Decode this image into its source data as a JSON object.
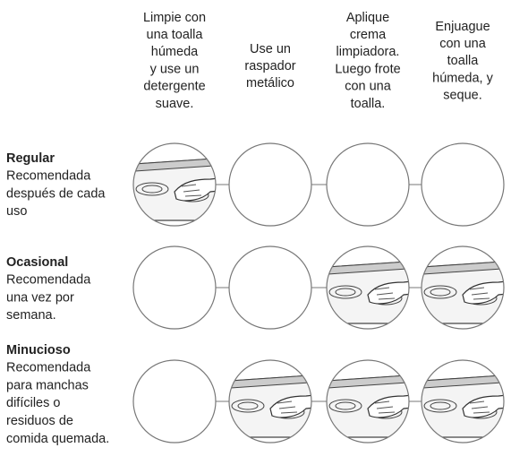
{
  "columns": [
    {
      "lines": [
        "Limpie con",
        "una toalla",
        "húmeda",
        "y use un",
        "detergente",
        "suave."
      ]
    },
    {
      "lines": [
        "Use un",
        "raspador",
        "metálico"
      ]
    },
    {
      "lines": [
        "Aplique",
        "crema",
        "limpiadora.",
        "Luego frote",
        "con una",
        "toalla."
      ]
    },
    {
      "lines": [
        "Enjuague",
        "con una",
        "toalla",
        "húmeda, y",
        "seque."
      ]
    }
  ],
  "rows": [
    {
      "title": "Regular",
      "lines": [
        "Recomendada",
        "después de cada",
        "uso"
      ]
    },
    {
      "title": "Ocasional",
      "lines": [
        "Recomendada",
        "una vez por",
        "semana."
      ]
    },
    {
      "title": "Minucioso",
      "lines": [
        "Recomendada",
        "para manchas",
        "difíciles o",
        "residuos de",
        "comida quemada."
      ]
    }
  ]
}
